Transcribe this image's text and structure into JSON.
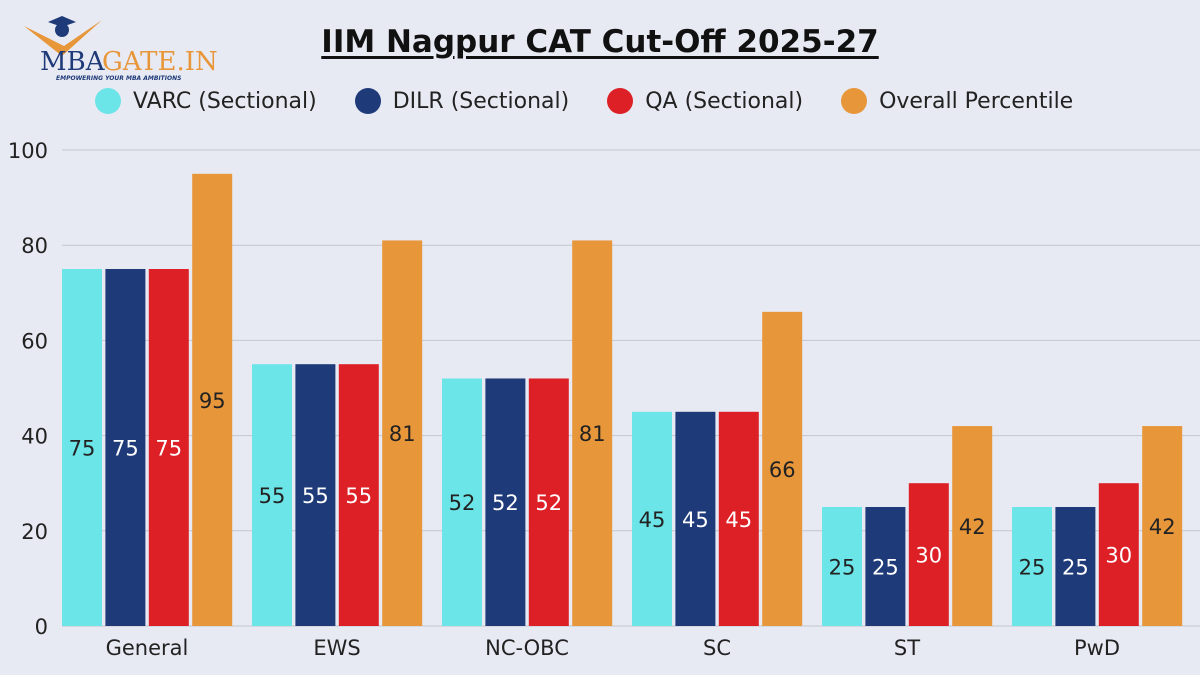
{
  "logo": {
    "text_left": "MBA",
    "text_right": "GATE.IN",
    "tagline": "EMPOWERING YOUR MBA AMBITIONS"
  },
  "chart_data": {
    "type": "bar",
    "title": "IIM Nagpur CAT Cut-Off 2025-27",
    "categories": [
      "General",
      "EWS",
      "NC-OBC",
      "SC",
      "ST",
      "PwD"
    ],
    "series": [
      {
        "name": "VARC (Sectional)",
        "color": "#6ce5e8",
        "label_color": "#222222",
        "values": [
          75,
          55,
          52,
          45,
          25,
          25
        ]
      },
      {
        "name": "DILR (Sectional)",
        "color": "#1e3a78",
        "label_color": "#ffffff",
        "values": [
          75,
          55,
          52,
          45,
          25,
          25
        ]
      },
      {
        "name": "QA (Sectional)",
        "color": "#dd1f26",
        "label_color": "#ffffff",
        "values": [
          75,
          55,
          52,
          45,
          30,
          30
        ]
      },
      {
        "name": "Overall Percentile",
        "color": "#e8963a",
        "label_color": "#222222",
        "values": [
          95,
          81,
          81,
          66,
          42,
          42
        ]
      }
    ],
    "ylim": [
      0,
      100
    ],
    "yticks": [
      0,
      20,
      40,
      60,
      80,
      100
    ],
    "grid": true,
    "legend": "top"
  }
}
